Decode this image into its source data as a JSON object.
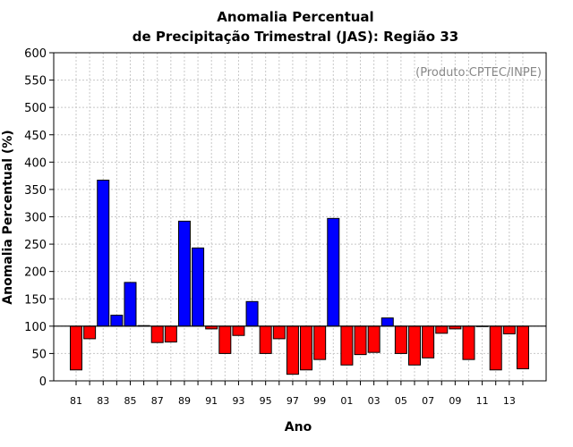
{
  "chart_data": {
    "type": "bar",
    "title_line1": "Anomalia Percentual",
    "title_line2": "de Precipitação Trimestral (JAS): Região 33",
    "xlabel": "Ano",
    "ylabel": "Anomalia Percentual (%)",
    "credit": "(Produto:CPTEC/INPE)",
    "baseline": 100,
    "ylim": [
      0,
      600
    ],
    "yticks": [
      0,
      50,
      100,
      150,
      200,
      250,
      300,
      350,
      400,
      450,
      500,
      550,
      600
    ],
    "categories": [
      "81",
      "82",
      "83",
      "84",
      "85",
      "86",
      "87",
      "88",
      "89",
      "90",
      "91",
      "92",
      "93",
      "94",
      "95",
      "96",
      "97",
      "98",
      "99",
      "00",
      "01",
      "02",
      "03",
      "04",
      "05",
      "06",
      "07",
      "08",
      "09",
      "10",
      "11",
      "12",
      "13",
      "14"
    ],
    "tick_labels": [
      "81",
      "83",
      "85",
      "87",
      "89",
      "91",
      "93",
      "95",
      "97",
      "99",
      "01",
      "03",
      "05",
      "07",
      "09",
      "11",
      "13"
    ],
    "values": [
      20,
      77,
      367,
      120,
      180,
      101,
      70,
      71,
      292,
      243,
      95,
      50,
      83,
      145,
      50,
      77,
      12,
      20,
      39,
      297,
      29,
      48,
      52,
      115,
      50,
      29,
      42,
      87,
      95,
      39,
      100,
      20,
      86,
      22
    ],
    "colors": {
      "above": "#0000ff",
      "below": "#ff0000",
      "grid": "#c8c8c8"
    }
  }
}
